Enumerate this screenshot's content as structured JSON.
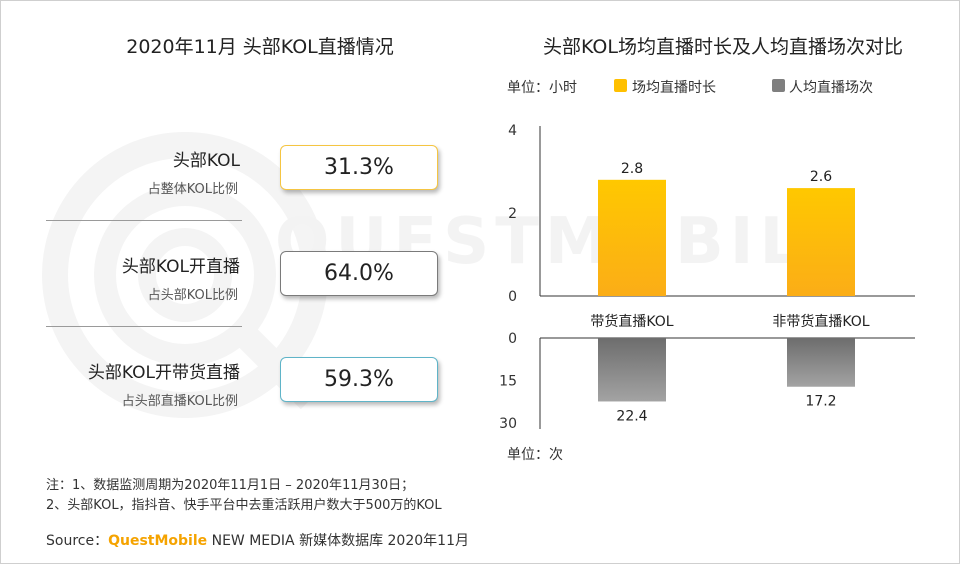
{
  "left_title": "2020年11月 头部KOL直播情况",
  "right_title": "头部KOL场均直播时长及人均直播场次对比",
  "watermark": "QUESTMOBILE",
  "kpis": [
    {
      "label": "头部KOL",
      "sub": "占整体KOL比例",
      "value": "31.3%",
      "border_color": "#f5c542"
    },
    {
      "label": "头部KOL开直播",
      "sub": "占头部KOL比例",
      "value": "64.0%",
      "border_color": "#7a7a7a"
    },
    {
      "label": "头部KOL开带货直播",
      "sub": "占头部直播KOL比例",
      "value": "59.3%",
      "border_color": "#5fb4c8"
    }
  ],
  "legend": {
    "unit_top": "单位：小时",
    "unit_bottom": "单位：次",
    "series": [
      {
        "name": "场均直播时长",
        "color": "#ffc000"
      },
      {
        "name": "人均直播场次",
        "color": "#7f7f7f"
      }
    ]
  },
  "chart_data": [
    {
      "type": "bar",
      "title": "头部KOL场均直播时长及人均直播场次对比",
      "categories": [
        "带货直播KOL",
        "非带货直播KOL"
      ],
      "series": [
        {
          "name": "场均直播时长",
          "values": [
            2.8,
            2.6
          ],
          "color": "#ffc000"
        }
      ],
      "ylim": [
        0,
        4
      ],
      "yticks": [
        "0",
        "2",
        "4"
      ],
      "ylabel": "单位：小时"
    },
    {
      "type": "bar",
      "orientation": "downward",
      "categories": [
        "带货直播KOL",
        "非带货直播KOL"
      ],
      "series": [
        {
          "name": "人均直播场次",
          "values": [
            22.4,
            17.2
          ],
          "color": "#7f7f7f"
        }
      ],
      "ylim": [
        0,
        30
      ],
      "yticks": [
        "0",
        "15",
        "30"
      ],
      "ylabel": "单位：次"
    }
  ],
  "footnotes": [
    "注：1、数据监测周期为2020年11月1日 – 2020年11月30日；",
    "2、头部KOL，指抖音、快手平台中去重活跃用户数大于500万的KOL"
  ],
  "source": {
    "prefix": "Source：",
    "brand": "QuestMobile",
    "rest": " NEW MEDIA 新媒体数据库 2020年11月"
  }
}
